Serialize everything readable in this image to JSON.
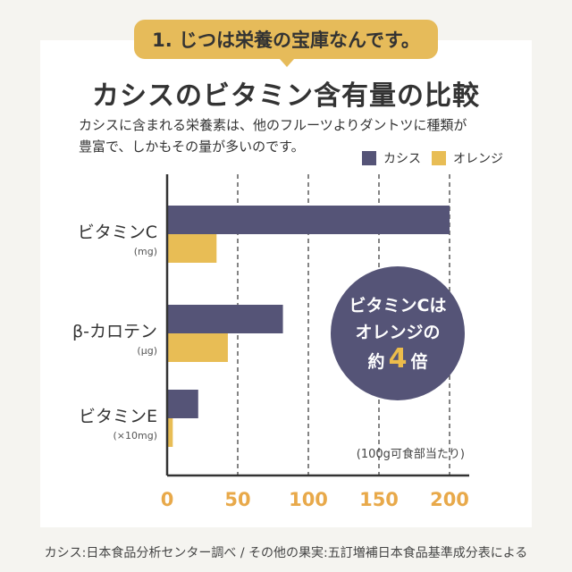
{
  "badge": {
    "text": "1. じつは栄養の宝庫なんです。"
  },
  "title": "カシスのビタミン含有量の比較",
  "description": {
    "line1": "カシスに含まれる栄養素は、他のフルーツよりダントツに種類が",
    "line2": "豊富で、しかもその量が多いのです。"
  },
  "callout": {
    "line1": "ビタミンCは",
    "line2": "オレンジの",
    "prefix": "約",
    "number": "4",
    "suffix": "倍"
  },
  "footer": "カシス:日本食品分析センター調べ / その他の果実:五訂増補日本食品基準成分表による",
  "colors": {
    "cassis": "#555477",
    "orange": "#e8bd55",
    "axis_tick": "#e8a94a"
  },
  "chart_data": {
    "type": "bar",
    "orientation": "horizontal",
    "title": "カシスのビタミン含有量の比較",
    "categories": [
      {
        "label": "ビタミンC",
        "unit": "(mg)"
      },
      {
        "label": "β-カロテン",
        "unit": "(μg)"
      },
      {
        "label": "ビタミンE",
        "unit": "(×10mg)"
      }
    ],
    "series": [
      {
        "name": "カシス",
        "values": [
          200,
          82,
          22
        ]
      },
      {
        "name": "オレンジ",
        "values": [
          35,
          43,
          4
        ]
      }
    ],
    "xlim": [
      0,
      200
    ],
    "xticks": [
      0,
      50,
      100,
      150,
      200
    ],
    "grid": "dashed vertical",
    "legend": "top-right",
    "note": "(100g可食部当たり)"
  }
}
